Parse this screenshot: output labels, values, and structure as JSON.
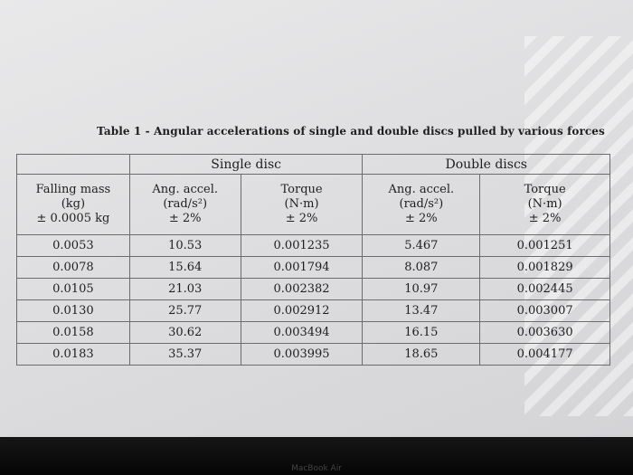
{
  "caption": "Table 1 - Angular accelerations of single and double discs pulled by various forces",
  "groups": {
    "single": "Single disc",
    "double": "Double discs"
  },
  "headers": [
    [
      "Falling mass",
      "(kg)",
      "± 0.0005 kg"
    ],
    [
      "Ang. accel.",
      "(rad/s²)",
      "± 2%"
    ],
    [
      "Torque",
      "(N·m)",
      "± 2%"
    ],
    [
      "Ang. accel.",
      "(rad/s²)",
      "± 2%"
    ],
    [
      "Torque",
      "(N·m)",
      "± 2%"
    ]
  ],
  "rows": [
    [
      "0.0053",
      "10.53",
      "0.001235",
      "5.467",
      "0.001251"
    ],
    [
      "0.0078",
      "15.64",
      "0.001794",
      "8.087",
      "0.001829"
    ],
    [
      "0.0105",
      "21.03",
      "0.002382",
      "10.97",
      "0.002445"
    ],
    [
      "0.0130",
      "25.77",
      "0.002912",
      "13.47",
      "0.003007"
    ],
    [
      "0.0158",
      "30.62",
      "0.003494",
      "16.15",
      "0.003630"
    ],
    [
      "0.0183",
      "35.37",
      "0.003995",
      "18.65",
      "0.004177"
    ]
  ],
  "bezel_text": "MacBook Air"
}
